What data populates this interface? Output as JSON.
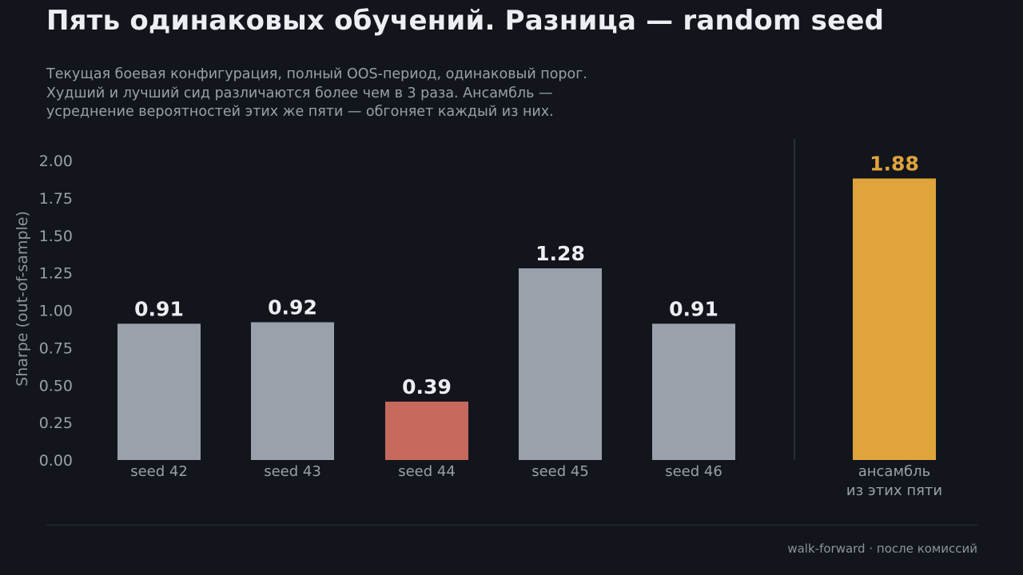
{
  "header": {
    "title": "Пять одинаковых обучений. Разница — random seed",
    "subtitle_lines": [
      "Текущая боевая конфигурация, полный OOS-период, одинаковый порог.",
      "Худший и лучший сид различаются более чем в 3 раза. Ансамбль —",
      "усреднение вероятностей этих же пяти — обгоняет каждый из них."
    ]
  },
  "colors": {
    "background": "#12151c",
    "seed_bar": "#9aa1ab",
    "worst_bar": "#c7695d",
    "ensemble_bar": "#e0a43c",
    "value_label": "#eceef1",
    "ensemble_label": "#e0a43c"
  },
  "chart_data": {
    "type": "bar",
    "categories": [
      "seed 42",
      "seed 43",
      "seed 44",
      "seed 45",
      "seed 46",
      "ансамбль\nиз этих пяти"
    ],
    "values": [
      0.91,
      0.92,
      0.39,
      1.28,
      0.91,
      1.88
    ],
    "value_labels": [
      "0.91",
      "0.92",
      "0.39",
      "1.28",
      "0.91",
      "1.88"
    ],
    "highlight": [
      "seed",
      "seed",
      "worst",
      "seed",
      "seed",
      "ensemble"
    ],
    "ylabel": "Sharpe (out-of-sample)",
    "ylim": [
      0,
      2.0
    ],
    "yticks": [
      "0.00",
      "0.25",
      "0.50",
      "0.75",
      "1.00",
      "1.25",
      "1.50",
      "1.75",
      "2.00"
    ],
    "separator_before_last": true,
    "grid": false
  },
  "footer": {
    "note": "walk-forward · после комиссий"
  }
}
